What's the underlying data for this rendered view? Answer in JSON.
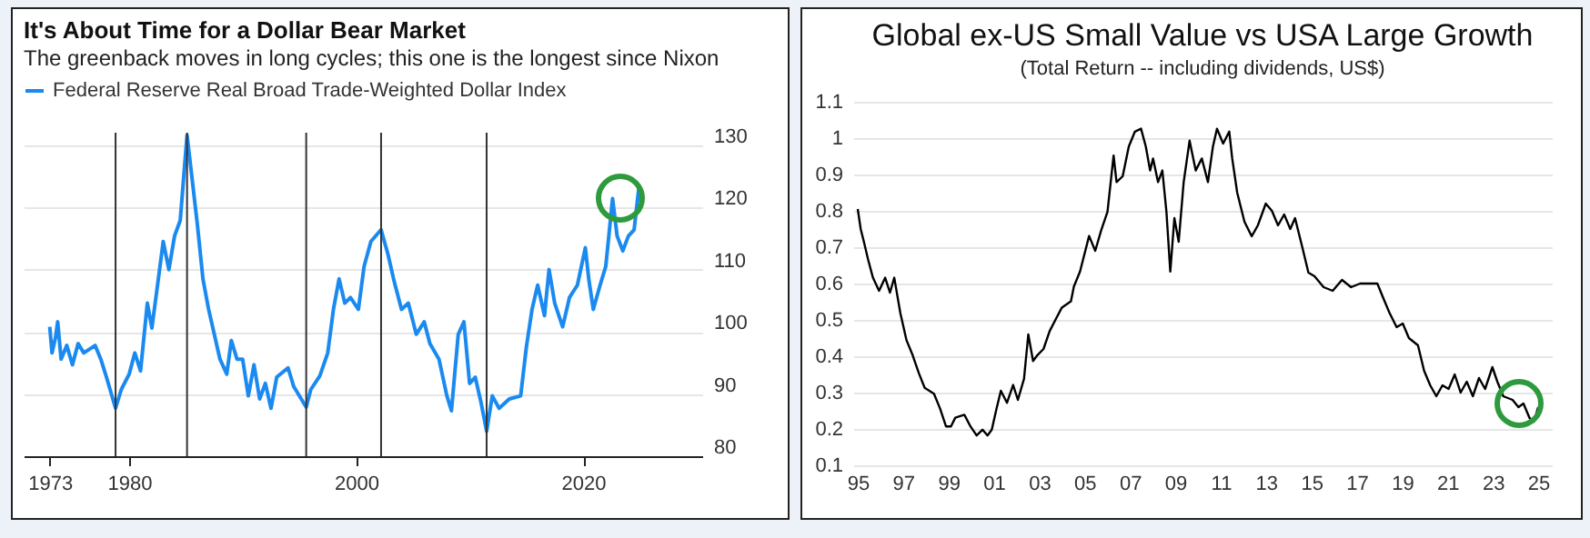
{
  "chart_data": [
    {
      "type": "line",
      "title": "It's About Time for a Dollar Bear Market",
      "subtitle": "The greenback moves in long cycles; this one is the longest since Nixon",
      "x": [
        1973.0,
        1973.2,
        1973.5,
        1973.7,
        1974.0,
        1974.5,
        1975.0,
        1975.5,
        1976.0,
        1977.0,
        1977.5,
        1978.0,
        1978.8,
        1979.3,
        1980.0,
        1980.5,
        1981.0,
        1981.6,
        1982.0,
        1982.5,
        1983.0,
        1983.5,
        1984.0,
        1984.5,
        1985.1,
        1985.5,
        1986.0,
        1986.5,
        1987.0,
        1987.5,
        1988.0,
        1988.6,
        1989.0,
        1989.5,
        1990.0,
        1990.5,
        1991.0,
        1991.5,
        1992.0,
        1992.5,
        1993.0,
        1994.0,
        1994.5,
        1995.6,
        1996.0,
        1996.8,
        1997.5,
        1998.0,
        1998.5,
        1999.0,
        1999.5,
        2000.2,
        2000.7,
        2001.3,
        2002.2,
        2002.8,
        2003.3,
        2004.0,
        2004.6,
        2005.3,
        2006.0,
        2006.5,
        2007.3,
        2008.0,
        2008.4,
        2009.0,
        2009.5,
        2010.0,
        2010.5,
        2011.0,
        2011.5,
        2012.0,
        2012.6,
        2013.5,
        2014.5,
        2015.0,
        2015.5,
        2016.0,
        2016.6,
        2017.0,
        2017.5,
        2018.2,
        2018.8,
        2019.5,
        2020.2,
        2020.5,
        2020.9,
        2021.5,
        2022.0,
        2022.6,
        2023.0,
        2023.5,
        2024.0,
        2024.5,
        2024.9,
        2025.1
      ],
      "series": [
        {
          "name": "Federal Reserve Real Broad Trade-Weighted Dollar Index",
          "color": "#1a8af0",
          "values": [
            100.8,
            96.6,
            99,
            101.6,
            95.6,
            97.8,
            94.7,
            98.1,
            96.6,
            97.8,
            95.6,
            92.7,
            87.7,
            90.7,
            93.2,
            96.6,
            93.7,
            104.6,
            100.6,
            107.5,
            114.5,
            110,
            115.4,
            117.9,
            131.6,
            125.3,
            117.4,
            108.5,
            103.6,
            99.6,
            95.6,
            93.2,
            98.6,
            95.6,
            95.6,
            89.7,
            94.7,
            89.2,
            91.7,
            87.7,
            92.7,
            94.2,
            91.2,
            87.9,
            90.7,
            92.9,
            96.6,
            103.6,
            108.5,
            104.6,
            105.5,
            103.6,
            110.5,
            114.5,
            116.4,
            112.5,
            108.5,
            103.6,
            104.6,
            99.6,
            101.6,
            98.1,
            95.6,
            89.7,
            87.3,
            99.6,
            101.6,
            91.7,
            92.7,
            88.7,
            84,
            89.7,
            87.7,
            89.2,
            89.7,
            97.5,
            103.6,
            107.5,
            102.6,
            110,
            104.6,
            100.8,
            105.5,
            107.5,
            113.5,
            108.5,
            103.6,
            107.5,
            110.5,
            121.4,
            115.4,
            113,
            115.4,
            116.4,
            122.9,
            121
          ]
        }
      ],
      "xlim": [
        1970.7,
        2030.5
      ],
      "xticks": [
        1973,
        1980,
        2000,
        2020
      ],
      "ylim": [
        80,
        132
      ],
      "yticks": [
        80,
        90,
        100,
        110,
        120,
        130
      ],
      "grid": "y",
      "legend": "top left",
      "ref_lines": [
        {
          "axis": "x",
          "value": 1978.8,
          "color": "#333333"
        },
        {
          "axis": "x",
          "value": 1985.1,
          "color": "#333333"
        },
        {
          "axis": "x",
          "value": 1995.6,
          "color": "#333333"
        },
        {
          "axis": "x",
          "value": 2002.2,
          "color": "#333333"
        },
        {
          "axis": "x",
          "value": 2011.5,
          "color": "#333333"
        }
      ]
    },
    {
      "type": "line",
      "title": "Global ex-US Small Value vs USA Large Growth",
      "subtitle": "(Total Return -- including dividends, US$)",
      "x": [
        1995.0,
        1995.13,
        1995.27,
        1995.46,
        1995.67,
        1995.94,
        1996.21,
        1996.42,
        1996.61,
        1996.88,
        1997.15,
        1997.42,
        1997.69,
        1997.95,
        1998.36,
        1998.63,
        1998.89,
        1999.11,
        1999.3,
        1999.7,
        1999.97,
        2000.24,
        2000.5,
        2000.72,
        2000.91,
        2001.12,
        2001.31,
        2001.58,
        2001.85,
        2002.06,
        2002.33,
        2002.52,
        2002.73,
        2002.92,
        2003.19,
        2003.46,
        2003.73,
        2004.0,
        2004.4,
        2004.53,
        2004.8,
        2005.2,
        2005.47,
        2005.74,
        2006.01,
        2006.28,
        2006.41,
        2006.68,
        2006.95,
        2007.22,
        2007.49,
        2007.7,
        2007.89,
        2008.02,
        2008.24,
        2008.43,
        2008.61,
        2008.78,
        2008.96,
        2009.15,
        2009.37,
        2009.63,
        2009.9,
        2010.17,
        2010.44,
        2010.66,
        2010.84,
        2011.11,
        2011.38,
        2011.51,
        2011.73,
        2012.05,
        2012.37,
        2012.64,
        2012.99,
        2013.26,
        2013.53,
        2013.8,
        2014.07,
        2014.28,
        2014.6,
        2014.87,
        2015.14,
        2015.54,
        2015.94,
        2016.35,
        2016.75,
        2017.15,
        2017.56,
        2017.91,
        2018.17,
        2018.44,
        2018.76,
        2019.03,
        2019.3,
        2019.7,
        2019.97,
        2020.24,
        2020.51,
        2020.78,
        2021.05,
        2021.32,
        2021.58,
        2021.85,
        2022.12,
        2022.39,
        2022.66,
        2022.98,
        2023.2,
        2023.46,
        2023.87,
        2024.13,
        2024.35,
        2024.62,
        2024.81,
        2025.0
      ],
      "series": [
        {
          "color": "#000000",
          "values": [
            0.805,
            0.75,
            0.715,
            0.665,
            0.616,
            0.58,
            0.616,
            0.575,
            0.616,
            0.518,
            0.444,
            0.403,
            0.354,
            0.313,
            0.297,
            0.256,
            0.207,
            0.207,
            0.231,
            0.239,
            0.207,
            0.182,
            0.198,
            0.182,
            0.198,
            0.256,
            0.305,
            0.272,
            0.321,
            0.28,
            0.338,
            0.46,
            0.387,
            0.403,
            0.42,
            0.469,
            0.502,
            0.534,
            0.551,
            0.592,
            0.633,
            0.731,
            0.69,
            0.748,
            0.797,
            0.952,
            0.879,
            0.895,
            0.977,
            1.018,
            1.026,
            0.977,
            0.911,
            0.944,
            0.879,
            0.911,
            0.797,
            0.633,
            0.78,
            0.715,
            0.879,
            0.993,
            0.911,
            0.944,
            0.879,
            0.977,
            1.026,
            0.985,
            1.018,
            0.944,
            0.85,
            0.77,
            0.73,
            0.76,
            0.82,
            0.8,
            0.76,
            0.79,
            0.75,
            0.78,
            0.7,
            0.63,
            0.62,
            0.59,
            0.58,
            0.61,
            0.59,
            0.6,
            0.6,
            0.6,
            0.56,
            0.52,
            0.48,
            0.49,
            0.45,
            0.43,
            0.36,
            0.32,
            0.29,
            0.32,
            0.31,
            0.35,
            0.3,
            0.33,
            0.29,
            0.34,
            0.31,
            0.37,
            0.33,
            0.29,
            0.28,
            0.26,
            0.27,
            0.23,
            0.22,
            0.26
          ]
        }
      ],
      "xlim": [
        1994.8,
        2025.6
      ],
      "xticks": [
        {
          "value": 1995,
          "label": "95"
        },
        {
          "value": 1997,
          "label": "97"
        },
        {
          "value": 1999,
          "label": "99"
        },
        {
          "value": 2001,
          "label": "01"
        },
        {
          "value": 2003,
          "label": "03"
        },
        {
          "value": 2005,
          "label": "05"
        },
        {
          "value": 2007,
          "label": "07"
        },
        {
          "value": 2009,
          "label": "09"
        },
        {
          "value": 2011,
          "label": "11"
        },
        {
          "value": 2013,
          "label": "13"
        },
        {
          "value": 2015,
          "label": "15"
        },
        {
          "value": 2017,
          "label": "17"
        },
        {
          "value": 2019,
          "label": "19"
        },
        {
          "value": 2021,
          "label": "21"
        },
        {
          "value": 2023,
          "label": "23"
        },
        {
          "value": 2025,
          "label": "25"
        }
      ],
      "ylim": [
        0.1,
        1.1
      ],
      "yticks": [
        0.1,
        0.2,
        0.3,
        0.4,
        0.5,
        0.6,
        0.7,
        0.8,
        0.9,
        1,
        1.1
      ],
      "grid": "y"
    }
  ]
}
